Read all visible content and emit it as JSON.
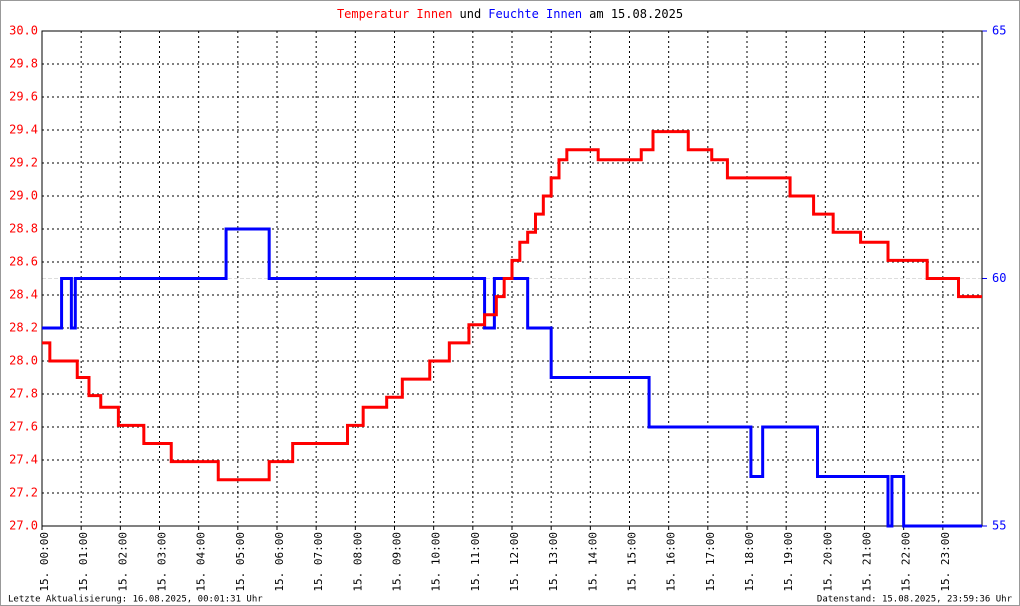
{
  "chart_data": {
    "type": "line",
    "title_connector": "und",
    "title_suffix": "am 15.08.2025",
    "footer_left": "Letzte Aktualisierung: 16.08.2025, 00:01:31 Uhr",
    "footer_right": "Datenstand: 15.08.2025, 23:59:36 Uhr",
    "xlim": [
      0,
      24
    ],
    "xticks": [
      {
        "value": 0,
        "label": "15. 00:00"
      },
      {
        "value": 1,
        "label": "15. 01:00"
      },
      {
        "value": 2,
        "label": "15. 02:00"
      },
      {
        "value": 3,
        "label": "15. 03:00"
      },
      {
        "value": 4,
        "label": "15. 04:00"
      },
      {
        "value": 5,
        "label": "15. 05:00"
      },
      {
        "value": 6,
        "label": "15. 06:00"
      },
      {
        "value": 7,
        "label": "15. 07:00"
      },
      {
        "value": 8,
        "label": "15. 08:00"
      },
      {
        "value": 9,
        "label": "15. 09:00"
      },
      {
        "value": 10,
        "label": "15. 10:00"
      },
      {
        "value": 11,
        "label": "15. 11:00"
      },
      {
        "value": 12,
        "label": "15. 12:00"
      },
      {
        "value": 13,
        "label": "15. 13:00"
      },
      {
        "value": 14,
        "label": "15. 14:00"
      },
      {
        "value": 15,
        "label": "15. 15:00"
      },
      {
        "value": 16,
        "label": "15. 16:00"
      },
      {
        "value": 17,
        "label": "15. 17:00"
      },
      {
        "value": 18,
        "label": "15. 18:00"
      },
      {
        "value": 19,
        "label": "15. 19:00"
      },
      {
        "value": 20,
        "label": "15. 20:00"
      },
      {
        "value": 21,
        "label": "15. 21:00"
      },
      {
        "value": 22,
        "label": "15. 22:00"
      },
      {
        "value": 23,
        "label": "15. 23:00"
      }
    ],
    "ylim": [
      27,
      30
    ],
    "yticks": [
      {
        "value": 27,
        "label": "27.0"
      },
      27.2,
      27.4,
      27.6,
      27.8,
      {
        "value": 28,
        "label": "28.0"
      },
      28.2,
      28.4,
      28.6,
      28.8,
      {
        "value": 29,
        "label": "29.0"
      },
      29.2,
      29.4,
      29.6,
      29.8,
      {
        "value": 30,
        "label": "30.0"
      }
    ],
    "y2lim": [
      55,
      65
    ],
    "y2ticks": [
      55,
      60,
      65
    ],
    "grid": true,
    "y2grid": true,
    "series": [
      {
        "name": "Temperatur Innen",
        "color": "#ff0000",
        "x": [
          0,
          0.2,
          0.2,
          0.9,
          0.9,
          1.2,
          1.2,
          1.5,
          1.5,
          1.95,
          1.95,
          2.6,
          2.6,
          3.3,
          3.3,
          4.5,
          4.5,
          5.8,
          5.8,
          6.4,
          6.4,
          7.8,
          7.8,
          8.2,
          8.2,
          8.8,
          8.8,
          9.2,
          9.2,
          9.9,
          9.9,
          10.4,
          10.4,
          10.9,
          10.9,
          11.3,
          11.3,
          11.6,
          11.6,
          11.8,
          11.8,
          12.0,
          12.0,
          12.2,
          12.2,
          12.4,
          12.4,
          12.6,
          12.6,
          12.8,
          12.8,
          13.0,
          13.0,
          13.2,
          13.2,
          13.4,
          13.4,
          14.2,
          14.2,
          15.3,
          15.3,
          15.6,
          15.6,
          16.5,
          16.5,
          17.1,
          17.1,
          17.5,
          17.5,
          19.1,
          19.1,
          19.7,
          19.7,
          20.2,
          20.2,
          20.9,
          20.9,
          21.6,
          21.6,
          22.6,
          22.6,
          23.4,
          23.4,
          24
        ],
        "values": [
          28.11,
          28.11,
          28.0,
          28.0,
          27.9,
          27.9,
          27.79,
          27.79,
          27.72,
          27.72,
          27.61,
          27.61,
          27.5,
          27.5,
          27.39,
          27.39,
          27.28,
          27.28,
          27.39,
          27.39,
          27.5,
          27.5,
          27.61,
          27.61,
          27.72,
          27.72,
          27.78,
          27.78,
          27.89,
          27.89,
          28.0,
          28.0,
          28.11,
          28.11,
          28.22,
          28.22,
          28.28,
          28.28,
          28.39,
          28.39,
          28.5,
          28.5,
          28.61,
          28.61,
          28.72,
          28.72,
          28.78,
          28.78,
          28.89,
          28.89,
          29.0,
          29.0,
          29.11,
          29.11,
          29.22,
          29.22,
          29.28,
          29.28,
          29.22,
          29.22,
          29.28,
          29.28,
          29.39,
          29.39,
          29.28,
          29.28,
          29.22,
          29.22,
          29.11,
          29.11,
          29.0,
          29.0,
          28.89,
          28.89,
          28.78,
          28.78,
          28.72,
          28.72,
          28.61,
          28.61,
          28.5,
          28.5,
          28.39,
          28.39
        ]
      },
      {
        "name": "Feuchte Innen",
        "color": "#0000ff",
        "axis": "y2",
        "x": [
          0,
          0.5,
          0.5,
          0.75,
          0.75,
          0.85,
          0.85,
          4.7,
          4.7,
          5.8,
          5.8,
          11.3,
          11.3,
          11.55,
          11.55,
          12.4,
          12.4,
          13.0,
          13.0,
          15.5,
          15.5,
          18.1,
          18.1,
          18.4,
          18.4,
          19.8,
          19.8,
          21.6,
          21.6,
          21.7,
          21.7,
          22.0,
          22.0,
          24
        ],
        "values": [
          59,
          59,
          60,
          60,
          59,
          59,
          60,
          60,
          61,
          61,
          60,
          60,
          59,
          59,
          60,
          60,
          59,
          59,
          58,
          58,
          57,
          57,
          56,
          56,
          57,
          57,
          56,
          56,
          55,
          55,
          56,
          56,
          55,
          55
        ]
      }
    ]
  }
}
